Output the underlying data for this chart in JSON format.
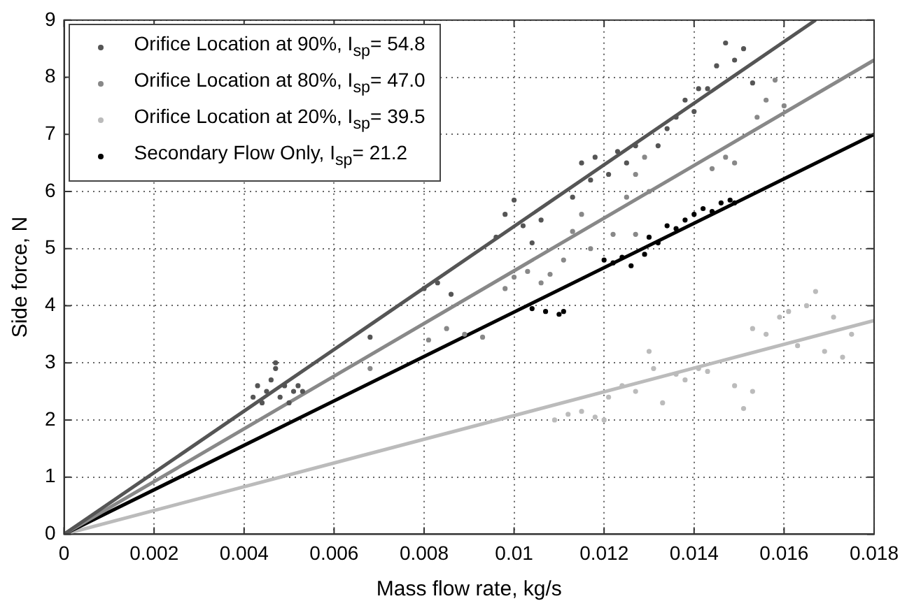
{
  "chart_data": {
    "type": "scatter",
    "xlabel": "Mass flow rate, kg/s",
    "ylabel": "Side force, N",
    "xlim": [
      0,
      0.018
    ],
    "ylim": [
      0,
      9
    ],
    "xticks": [
      0,
      0.002,
      0.004,
      0.006,
      0.008,
      0.01,
      0.012,
      0.014,
      0.016,
      0.018
    ],
    "yticks": [
      0,
      1,
      2,
      3,
      4,
      5,
      6,
      7,
      8,
      9
    ],
    "grid": true,
    "legend": "top left",
    "marker": "circle",
    "series": [
      {
        "name": "Orifice Location at 90%, I$_{sp}$= 54.8",
        "color": "#555555",
        "x": [
          0.0042,
          0.0043,
          0.0044,
          0.0045,
          0.0046,
          0.0047,
          0.0047,
          0.0048,
          0.0049,
          0.005,
          0.0051,
          0.0052,
          0.0053,
          0.0068,
          0.008,
          0.0083,
          0.0086,
          0.0096,
          0.0098,
          0.01,
          0.0102,
          0.0104,
          0.0106,
          0.0113,
          0.0115,
          0.0117,
          0.0118,
          0.0121,
          0.0123,
          0.0125,
          0.0127,
          0.0132,
          0.0134,
          0.0136,
          0.0138,
          0.014,
          0.0141,
          0.0143,
          0.0145,
          0.0147,
          0.0149,
          0.0151,
          0.0153
        ],
        "values": [
          2.4,
          2.6,
          2.3,
          2.5,
          2.7,
          2.9,
          3.0,
          2.4,
          2.6,
          2.3,
          2.5,
          2.6,
          2.5,
          3.45,
          4.3,
          4.4,
          4.2,
          5.2,
          5.6,
          5.85,
          5.4,
          5.1,
          5.5,
          5.9,
          6.5,
          6.2,
          6.6,
          6.3,
          6.7,
          6.5,
          6.8,
          6.8,
          7.1,
          7.3,
          7.6,
          7.4,
          7.8,
          7.8,
          8.2,
          8.6,
          8.3,
          8.5,
          7.9
        ]
      },
      {
        "name": "Orifice Location at 80%, I$_{sp}$= 47.0",
        "color": "#888888",
        "x": [
          0.0068,
          0.0081,
          0.0085,
          0.0089,
          0.0093,
          0.0098,
          0.01,
          0.0103,
          0.0106,
          0.0108,
          0.0111,
          0.0113,
          0.0115,
          0.0117,
          0.0122,
          0.0127,
          0.0125,
          0.0127,
          0.0129,
          0.013,
          0.0144,
          0.0147,
          0.0149,
          0.0154,
          0.0156,
          0.0158,
          0.016
        ],
        "values": [
          2.9,
          3.4,
          3.6,
          3.5,
          3.45,
          4.3,
          4.5,
          4.6,
          4.4,
          4.55,
          4.8,
          5.3,
          5.6,
          5.0,
          5.25,
          5.25,
          5.9,
          6.3,
          6.6,
          6.0,
          6.4,
          6.6,
          6.5,
          7.3,
          7.6,
          7.95,
          7.5
        ]
      },
      {
        "name": "Orifice Location at 20%, I$_{sp}$= 39.5",
        "color": "#bbbbbb",
        "x": [
          0.0109,
          0.0112,
          0.0115,
          0.0118,
          0.012,
          0.0121,
          0.0124,
          0.0127,
          0.013,
          0.0131,
          0.0133,
          0.0136,
          0.0138,
          0.0141,
          0.0143,
          0.0149,
          0.0151,
          0.0153,
          0.0153,
          0.0156,
          0.0159,
          0.0161,
          0.0163,
          0.0165,
          0.0167,
          0.0169,
          0.0171,
          0.0173,
          0.0175
        ],
        "values": [
          2.0,
          2.1,
          2.15,
          2.05,
          2.0,
          2.4,
          2.6,
          2.5,
          3.2,
          2.9,
          2.3,
          2.8,
          2.7,
          2.9,
          2.85,
          2.6,
          2.2,
          2.5,
          3.6,
          3.5,
          3.8,
          3.9,
          3.3,
          4.0,
          4.25,
          3.2,
          3.8,
          3.1,
          3.5
        ]
      },
      {
        "name": "Secondary Flow Only, I$_{sp}$= 21.2",
        "color": "#000000",
        "x": [
          0.0104,
          0.0107,
          0.011,
          0.0111,
          0.012,
          0.0122,
          0.0124,
          0.0126,
          0.0129,
          0.013,
          0.0132,
          0.0134,
          0.0136,
          0.0138,
          0.014,
          0.0142,
          0.0144,
          0.0146,
          0.0148,
          0.0149
        ],
        "values": [
          3.95,
          3.9,
          3.85,
          3.9,
          4.8,
          4.75,
          4.85,
          4.7,
          4.9,
          5.2,
          5.1,
          5.4,
          5.35,
          5.5,
          5.6,
          5.7,
          5.65,
          5.8,
          5.85,
          5.8
        ]
      },
      {
        "type": "line",
        "marker": "none",
        "color": "#555555",
        "x": [
          0,
          0.0167
        ],
        "values": [
          0,
          9
        ]
      },
      {
        "type": "line",
        "marker": "none",
        "color": "#888888",
        "x": [
          0,
          0.018
        ],
        "values": [
          0,
          8.3
        ]
      },
      {
        "type": "line",
        "marker": "none",
        "color": "#000000",
        "x": [
          0,
          0.018
        ],
        "values": [
          0,
          7.0
        ]
      },
      {
        "type": "line",
        "marker": "none",
        "color": "#bbbbbb",
        "x": [
          0,
          0.018
        ],
        "values": [
          0,
          3.74
        ]
      }
    ]
  }
}
